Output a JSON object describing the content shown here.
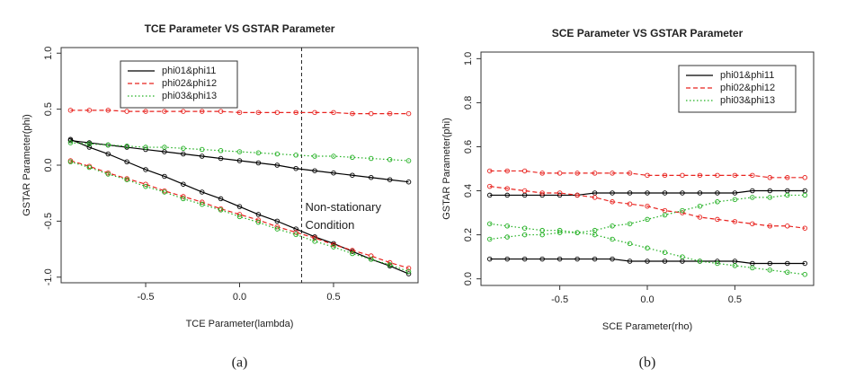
{
  "chart_data": [
    {
      "type": "line",
      "title": "TCE Parameter VS GSTAR Parameter",
      "x_label": "TCE Parameter(lambda)",
      "y_label": "GSTAR Parameter(phi)",
      "caption": "(a)",
      "x": [
        -0.9,
        -0.8,
        -0.7,
        -0.6,
        -0.5,
        -0.4,
        -0.3,
        -0.2,
        -0.1,
        0.0,
        0.1,
        0.2,
        0.3,
        0.4,
        0.5,
        0.6,
        0.7,
        0.8,
        0.9
      ],
      "xlim": [
        -0.95,
        0.95
      ],
      "ylim": [
        -1.05,
        1.05
      ],
      "xticks": [
        {
          "value": -0.5,
          "label": "-0.5"
        },
        {
          "value": 0,
          "label": "0.0"
        },
        {
          "value": 0.5,
          "label": "0.5"
        }
      ],
      "yticks": [
        {
          "value": -1,
          "label": "-1.0"
        },
        {
          "value": -0.5,
          "label": "-0.5"
        },
        {
          "value": 0,
          "label": "0.0"
        },
        {
          "value": 0.5,
          "label": "0.5"
        },
        {
          "value": 1,
          "label": "1.0"
        }
      ],
      "legend": "upper left",
      "vline": 0.33,
      "annotation": [
        "Non-stationary",
        "Condition"
      ],
      "series": [
        {
          "name": "phi01&phi11",
          "color": "#000000",
          "dash": "solid",
          "values": [
            [
              0.22,
              0.2,
              0.18,
              0.16,
              0.14,
              0.12,
              0.1,
              0.08,
              0.06,
              0.04,
              0.02,
              0.0,
              -0.03,
              -0.05,
              -0.07,
              -0.09,
              -0.11,
              -0.13,
              -0.15
            ],
            [
              0.23,
              0.16,
              0.1,
              0.03,
              -0.04,
              -0.1,
              -0.17,
              -0.24,
              -0.3,
              -0.37,
              -0.44,
              -0.5,
              -0.57,
              -0.64,
              -0.7,
              -0.77,
              -0.84,
              -0.9,
              -0.97
            ]
          ]
        },
        {
          "name": "phi02&phi12",
          "color": "#e8231f",
          "dash": "dashed",
          "values": [
            [
              0.49,
              0.49,
              0.49,
              0.48,
              0.48,
              0.48,
              0.48,
              0.48,
              0.48,
              0.47,
              0.47,
              0.47,
              0.47,
              0.47,
              0.47,
              0.46,
              0.46,
              0.46,
              0.46
            ],
            [
              0.04,
              -0.01,
              -0.07,
              -0.12,
              -0.17,
              -0.23,
              -0.28,
              -0.33,
              -0.39,
              -0.44,
              -0.49,
              -0.55,
              -0.6,
              -0.65,
              -0.71,
              -0.76,
              -0.81,
              -0.87,
              -0.92
            ]
          ]
        },
        {
          "name": "phi03&phi13",
          "color": "#22b022",
          "dash": "dotted",
          "values": [
            [
              0.2,
              0.19,
              0.18,
              0.17,
              0.16,
              0.16,
              0.15,
              0.14,
              0.13,
              0.12,
              0.11,
              0.1,
              0.09,
              0.08,
              0.08,
              0.07,
              0.06,
              0.05,
              0.04
            ],
            [
              0.03,
              -0.02,
              -0.08,
              -0.13,
              -0.19,
              -0.24,
              -0.3,
              -0.35,
              -0.4,
              -0.46,
              -0.51,
              -0.57,
              -0.62,
              -0.68,
              -0.73,
              -0.79,
              -0.84,
              -0.89,
              -0.95
            ]
          ]
        }
      ]
    },
    {
      "type": "line",
      "title": "SCE Parameter VS GSTAR Parameter",
      "x_label": "SCE Parameter(rho)",
      "y_label": "GSTAR Parameter(phi)",
      "caption": "(b)",
      "x": [
        -0.9,
        -0.8,
        -0.7,
        -0.6,
        -0.5,
        -0.4,
        -0.3,
        -0.2,
        -0.1,
        0.0,
        0.1,
        0.2,
        0.3,
        0.4,
        0.5,
        0.6,
        0.7,
        0.8,
        0.9
      ],
      "xlim": [
        -0.95,
        0.95
      ],
      "ylim": [
        -0.03,
        1.03
      ],
      "xticks": [
        {
          "value": -0.5,
          "label": "-0.5"
        },
        {
          "value": 0,
          "label": "0.0"
        },
        {
          "value": 0.5,
          "label": "0.5"
        }
      ],
      "yticks": [
        {
          "value": 0,
          "label": "0.0"
        },
        {
          "value": 0.2,
          "label": "0.2"
        },
        {
          "value": 0.4,
          "label": "0.4"
        },
        {
          "value": 0.6,
          "label": "0.6"
        },
        {
          "value": 0.8,
          "label": "0.8"
        },
        {
          "value": 1,
          "label": "1.0"
        }
      ],
      "legend": "upper right",
      "series": [
        {
          "name": "phi01&phi11",
          "color": "#000000",
          "dash": "solid",
          "values": [
            [
              0.38,
              0.38,
              0.38,
              0.38,
              0.38,
              0.38,
              0.39,
              0.39,
              0.39,
              0.39,
              0.39,
              0.39,
              0.39,
              0.39,
              0.39,
              0.4,
              0.4,
              0.4,
              0.4
            ],
            [
              0.09,
              0.09,
              0.09,
              0.09,
              0.09,
              0.09,
              0.09,
              0.09,
              0.08,
              0.08,
              0.08,
              0.08,
              0.08,
              0.08,
              0.08,
              0.07,
              0.07,
              0.07,
              0.07
            ]
          ]
        },
        {
          "name": "phi02&phi12",
          "color": "#e8231f",
          "dash": "dashed",
          "values": [
            [
              0.49,
              0.49,
              0.49,
              0.48,
              0.48,
              0.48,
              0.48,
              0.48,
              0.48,
              0.47,
              0.47,
              0.47,
              0.47,
              0.47,
              0.47,
              0.47,
              0.46,
              0.46,
              0.46
            ],
            [
              0.42,
              0.41,
              0.4,
              0.39,
              0.39,
              0.38,
              0.37,
              0.35,
              0.34,
              0.33,
              0.31,
              0.3,
              0.28,
              0.27,
              0.26,
              0.25,
              0.24,
              0.24,
              0.23
            ]
          ]
        },
        {
          "name": "phi03&phi13",
          "color": "#22b022",
          "dash": "dotted",
          "values": [
            [
              0.25,
              0.24,
              0.23,
              0.22,
              0.22,
              0.21,
              0.2,
              0.18,
              0.16,
              0.14,
              0.12,
              0.1,
              0.08,
              0.07,
              0.06,
              0.05,
              0.04,
              0.03,
              0.02
            ],
            [
              0.18,
              0.19,
              0.2,
              0.2,
              0.21,
              0.21,
              0.22,
              0.24,
              0.25,
              0.27,
              0.29,
              0.31,
              0.33,
              0.35,
              0.36,
              0.37,
              0.37,
              0.38,
              0.38
            ]
          ]
        }
      ]
    }
  ]
}
